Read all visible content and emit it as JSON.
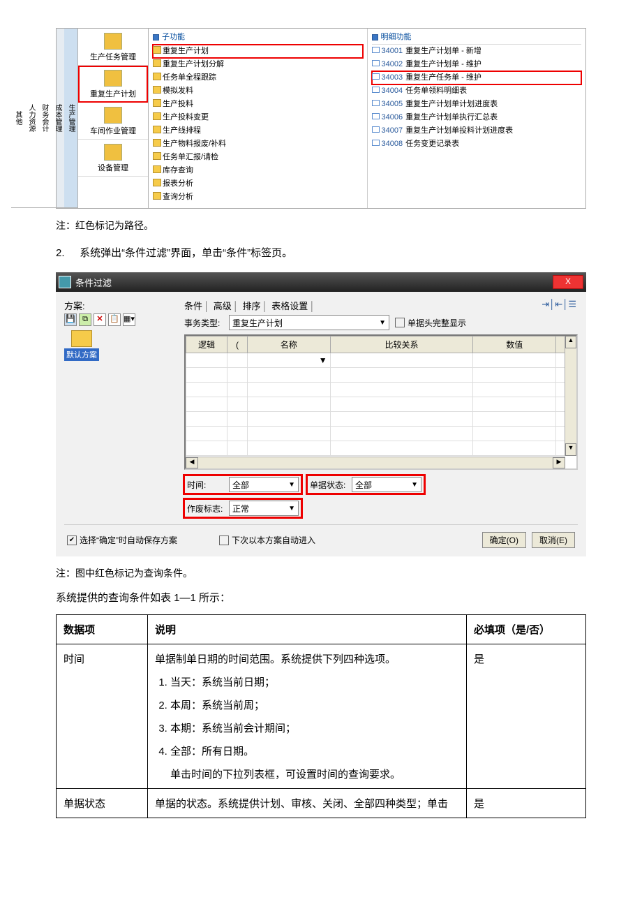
{
  "erp": {
    "tabs": [
      "生产管理",
      "成本管理",
      "财务会计",
      "人力资源",
      "其他"
    ],
    "modules": [
      {
        "label": "生产任务管理",
        "marked": false
      },
      {
        "label": "重复生产计划",
        "marked": true
      },
      {
        "label": "车间作业管理",
        "marked": false
      },
      {
        "label": "设备管理",
        "marked": false
      }
    ],
    "subTitle": "子功能",
    "subItems": [
      {
        "label": "重复生产计划",
        "marked": true
      },
      {
        "label": "重复生产计划分解",
        "marked": false
      },
      {
        "label": "任务单全程跟踪",
        "marked": false
      },
      {
        "label": "模拟发料",
        "marked": false
      },
      {
        "label": "生产投料",
        "marked": false
      },
      {
        "label": "生产投料变更",
        "marked": false
      },
      {
        "label": "生产线排程",
        "marked": false
      },
      {
        "label": "生产物料报废/补料",
        "marked": false
      },
      {
        "label": "任务单汇报/请检",
        "marked": false
      },
      {
        "label": "库存查询",
        "marked": false
      },
      {
        "label": "报表分析",
        "marked": false
      },
      {
        "label": "查询分析",
        "marked": false
      }
    ],
    "detailTitle": "明细功能",
    "detailItems": [
      {
        "code": "34001",
        "label": "重复生产计划单 - 新增",
        "marked": false
      },
      {
        "code": "34002",
        "label": "重复生产计划单 - 维护",
        "marked": false
      },
      {
        "code": "34003",
        "label": "重复生产任务单 - 维护",
        "marked": true
      },
      {
        "code": "34004",
        "label": "任务单领料明细表",
        "marked": false
      },
      {
        "code": "34005",
        "label": "重复生产计划单计划进度表",
        "marked": false
      },
      {
        "code": "34006",
        "label": "重复生产计划单执行汇总表",
        "marked": false
      },
      {
        "code": "34007",
        "label": "重复生产计划单投料计划进度表",
        "marked": false
      },
      {
        "code": "34008",
        "label": "任务变更记录表",
        "marked": false
      }
    ]
  },
  "notes": {
    "note1": "注：红色标记为路径。",
    "step2_num": "2.",
    "step2": "系统弹出“条件过滤”界面，单击“条件”标签页。",
    "note2": "注：图中红色标记为查询条件。",
    "intro": "系统提供的查询条件如表 1—1 所示："
  },
  "dlg": {
    "title": "条件过滤",
    "close": "X",
    "scheme_label": "方案:",
    "default_scheme": "默认方案",
    "tabs": [
      "条件",
      "高级",
      "排序",
      "表格设置"
    ],
    "type_label": "事务类型:",
    "type_value": "重复生产计划",
    "full_show": "单据头完整显示",
    "grid_headers": [
      "逻辑",
      "(",
      "名称",
      "比较关系",
      "数值",
      ")"
    ],
    "time_label": "时间:",
    "time_value": "全部",
    "status_label": "单据状态:",
    "status_value": "全部",
    "void_label": "作废标志:",
    "void_value": "正常",
    "autosave": "选择“确定”时自动保存方案",
    "autoenter": "下次以本方案自动进入",
    "ok": "确定(O)",
    "cancel": "取消(E)"
  },
  "datatable": {
    "headers": [
      "数据项",
      "说明",
      "必填项（是/否）"
    ],
    "row1": {
      "c0": "时间",
      "lead": "单据制单日期的时间范围。系统提供下列四种选项。",
      "opts": [
        "当天：系统当前日期；",
        "本周：系统当前周；",
        "本期：系统当前会计期间；",
        "全部：所有日期。"
      ],
      "tail": "单击时间的下拉列表框，可设置时间的查询要求。",
      "c2": "是"
    },
    "row2": {
      "c0": "单据状态",
      "c1": "单据的状态。系统提供计划、审核、关闭、全部四种类型；单击",
      "c2": "是"
    }
  },
  "colors": {
    "mark": "#e00000",
    "panel_bg": "#f1f1f1",
    "header_bg": "#ece9d8"
  }
}
